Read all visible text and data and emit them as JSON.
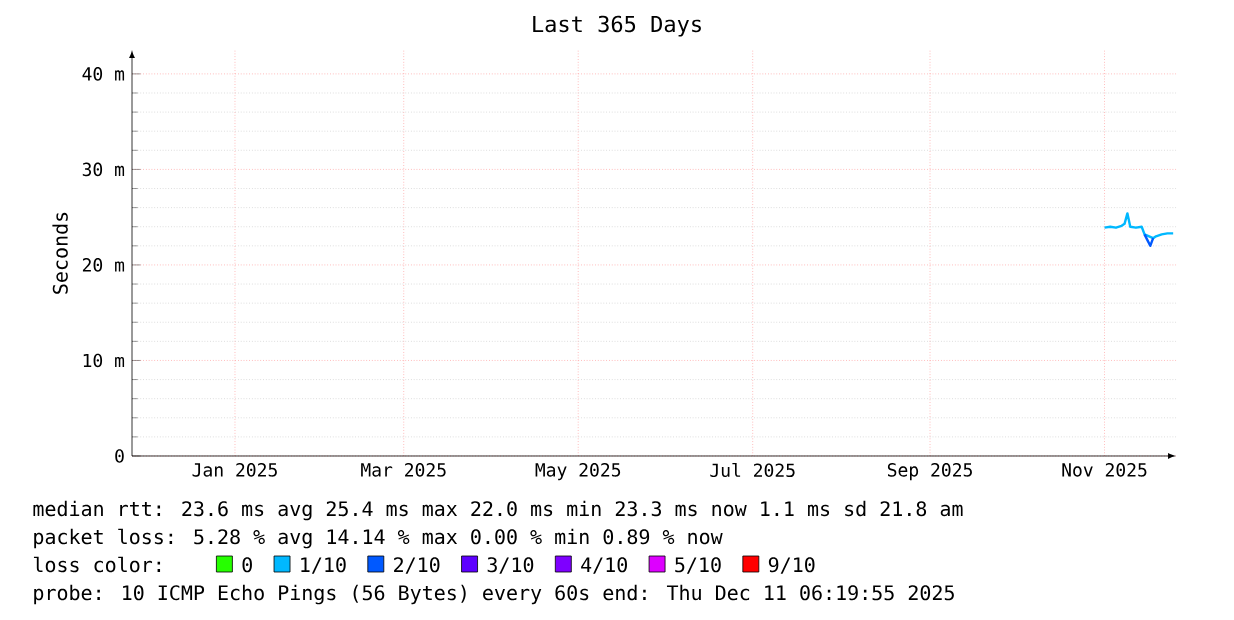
{
  "chart_data": {
    "type": "line",
    "title": "Last 365 Days",
    "ylabel": "Seconds",
    "xlim": [
      "2024-12-11",
      "2025-12-11"
    ],
    "xticks": [
      {
        "value": "2025-01-16",
        "label": "Jan 2025"
      },
      {
        "value": "2025-03-16",
        "label": "Mar 2025"
      },
      {
        "value": "2025-05-16",
        "label": "May 2025"
      },
      {
        "value": "2025-07-16",
        "label": "Jul 2025"
      },
      {
        "value": "2025-09-16",
        "label": "Sep 2025"
      },
      {
        "value": "2025-11-16",
        "label": "Nov 2025"
      }
    ],
    "ylim": [
      0,
      42.5
    ],
    "yticks": [
      0,
      {
        "value": 10,
        "label": "10 m"
      },
      {
        "value": 20,
        "label": "20 m"
      },
      {
        "value": 30,
        "label": "30 m"
      },
      {
        "value": 40,
        "label": "40 m"
      }
    ],
    "grid": true,
    "legend": "bottom",
    "legend_title": "loss color:",
    "marker": "none",
    "line_style": "solid",
    "series": [
      {
        "name": "0",
        "color": "#26ff00"
      },
      {
        "name": "1/10",
        "color": "#00b8ff",
        "x": [
          "2025-11-16",
          "2025-11-18",
          "2025-11-20",
          "2025-11-22",
          "2025-11-23",
          "2025-11-24",
          "2025-11-25",
          "2025-11-27",
          "2025-11-29",
          "2025-11-30",
          "2025-12-03",
          "2025-12-04",
          "2025-12-06",
          "2025-12-08",
          "2025-12-10"
        ],
        "values": [
          23.9,
          24.0,
          23.9,
          24.1,
          24.3,
          25.4,
          24.0,
          23.9,
          24.0,
          23.2,
          22.8,
          23.0,
          23.2,
          23.3,
          23.3
        ]
      },
      {
        "name": "2/10",
        "color": "#0059ff",
        "x": [
          "2025-11-30",
          "2025-12-01",
          "2025-12-02",
          "2025-12-03"
        ],
        "values": [
          23.2,
          22.6,
          22.0,
          22.8
        ]
      },
      {
        "name": "3/10",
        "color": "#5e00ff"
      },
      {
        "name": "4/10",
        "color": "#7e00ff"
      },
      {
        "name": "5/10",
        "color": "#dd00ff"
      },
      {
        "name": "9/10",
        "color": "#ff0000"
      }
    ],
    "annotations": [
      "median rtt:  23.6 ms avg  25.4 ms max  22.0 ms min  23.3 ms now  1.1 ms sd  21.8   am",
      "packet loss: 5.28 % avg  14.14 % max  0.00 % min  0.89 % now",
      "probe:       10 ICMP Echo Pings (56 Bytes) every 60s   end: Thu Dec 11 06:19:55 2025"
    ]
  }
}
